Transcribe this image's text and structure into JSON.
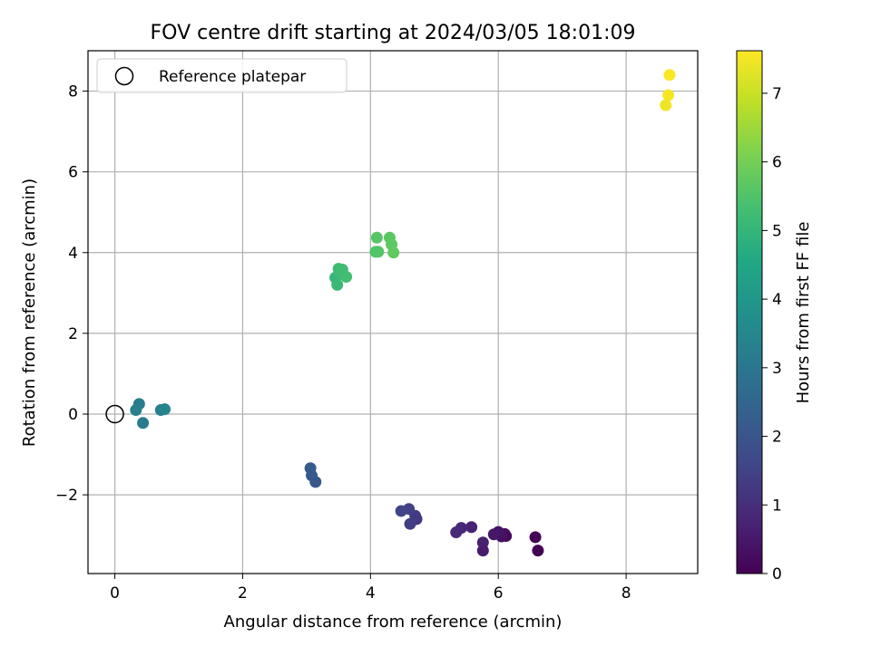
{
  "chart_data": {
    "type": "scatter",
    "title": "FOV centre drift starting at 2024/03/05 18:01:09",
    "xlabel": "Angular distance from reference (arcmin)",
    "ylabel": "Rotation from reference (arcmin)",
    "xlim": [
      -0.42,
      9.12
    ],
    "ylim": [
      -3.95,
      9.0
    ],
    "xticks": [
      0,
      2,
      4,
      6,
      8
    ],
    "xtick_labels": [
      "0",
      "2",
      "4",
      "6",
      "8"
    ],
    "yticks": [
      -2,
      0,
      2,
      4,
      6,
      8
    ],
    "ytick_labels": [
      "−2",
      "0",
      "2",
      "4",
      "6",
      "8"
    ],
    "grid": true,
    "legend": {
      "placement": "top-left",
      "entries": [
        {
          "label": "Reference platepar",
          "marker": "open-circle"
        }
      ]
    },
    "reference_point": {
      "x": 0,
      "y": 0
    },
    "colorbar": {
      "label": "Hours from first FF file",
      "colormap": "viridis",
      "range": [
        0,
        7.62
      ],
      "ticks": [
        0,
        1,
        2,
        3,
        4,
        5,
        6,
        7
      ],
      "tick_labels": [
        "0",
        "1",
        "2",
        "3",
        "4",
        "5",
        "6",
        "7"
      ]
    },
    "points": [
      {
        "x": 6.62,
        "y": -3.38,
        "hours": 0.0
      },
      {
        "x": 6.58,
        "y": -3.05,
        "hours": 0.08
      },
      {
        "x": 6.12,
        "y": -3.02,
        "hours": 0.17
      },
      {
        "x": 6.1,
        "y": -2.97,
        "hours": 0.25
      },
      {
        "x": 6.05,
        "y": -3.03,
        "hours": 0.33
      },
      {
        "x": 6.0,
        "y": -2.92,
        "hours": 0.42
      },
      {
        "x": 5.93,
        "y": -2.98,
        "hours": 0.5
      },
      {
        "x": 5.76,
        "y": -3.38,
        "hours": 0.58
      },
      {
        "x": 5.76,
        "y": -3.18,
        "hours": 0.67
      },
      {
        "x": 5.58,
        "y": -2.8,
        "hours": 0.75
      },
      {
        "x": 5.42,
        "y": -2.82,
        "hours": 0.83
      },
      {
        "x": 5.34,
        "y": -2.93,
        "hours": 0.92
      },
      {
        "x": 4.72,
        "y": -2.6,
        "hours": 1.2
      },
      {
        "x": 4.7,
        "y": -2.52,
        "hours": 1.3
      },
      {
        "x": 4.62,
        "y": -2.72,
        "hours": 1.38
      },
      {
        "x": 4.6,
        "y": -2.35,
        "hours": 1.45
      },
      {
        "x": 4.48,
        "y": -2.4,
        "hours": 1.55
      },
      {
        "x": 3.14,
        "y": -1.68,
        "hours": 2.05
      },
      {
        "x": 3.08,
        "y": -1.52,
        "hours": 2.12
      },
      {
        "x": 3.06,
        "y": -1.34,
        "hours": 2.2
      },
      {
        "x": 0.44,
        "y": -0.22,
        "hours": 3.1
      },
      {
        "x": 0.38,
        "y": 0.25,
        "hours": 3.18
      },
      {
        "x": 0.33,
        "y": 0.1,
        "hours": 3.25
      },
      {
        "x": 0.72,
        "y": 0.1,
        "hours": 3.32
      },
      {
        "x": 0.78,
        "y": 0.12,
        "hours": 3.4
      },
      {
        "x": 3.45,
        "y": 3.38,
        "hours": 5.05
      },
      {
        "x": 3.48,
        "y": 3.2,
        "hours": 5.1
      },
      {
        "x": 3.52,
        "y": 3.48,
        "hours": 5.15
      },
      {
        "x": 3.5,
        "y": 3.6,
        "hours": 5.2
      },
      {
        "x": 3.56,
        "y": 3.58,
        "hours": 5.25
      },
      {
        "x": 3.62,
        "y": 3.4,
        "hours": 5.3
      },
      {
        "x": 4.08,
        "y": 4.02,
        "hours": 5.5
      },
      {
        "x": 4.12,
        "y": 4.02,
        "hours": 5.55
      },
      {
        "x": 4.1,
        "y": 4.37,
        "hours": 5.6
      },
      {
        "x": 4.3,
        "y": 4.37,
        "hours": 5.65
      },
      {
        "x": 4.33,
        "y": 4.2,
        "hours": 5.7
      },
      {
        "x": 4.36,
        "y": 4.0,
        "hours": 5.75
      },
      {
        "x": 8.62,
        "y": 7.65,
        "hours": 7.45
      },
      {
        "x": 8.66,
        "y": 7.9,
        "hours": 7.52
      },
      {
        "x": 8.68,
        "y": 8.4,
        "hours": 7.6
      }
    ]
  }
}
